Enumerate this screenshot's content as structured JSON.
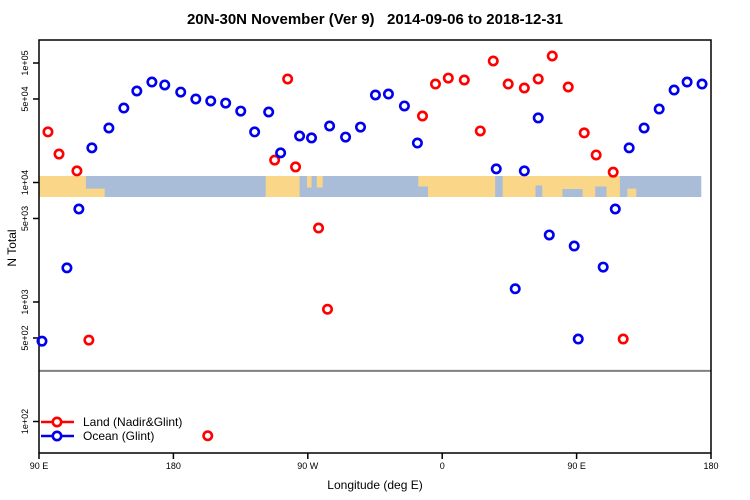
{
  "title": "20N-30N November (Ver 9)   2014-09-06 to 2018-12-31",
  "axes": {
    "x": {
      "label": "Longitude (deg E)",
      "tick_lons": [
        90,
        180,
        270,
        360,
        450,
        540
      ],
      "tick_labels": [
        "90 E",
        "180",
        "90 W",
        "0",
        "90 E",
        "180"
      ]
    },
    "y": {
      "label": "N Total",
      "tick_values": [
        100000,
        50000,
        10000,
        5000,
        1000,
        500,
        100
      ],
      "tick_labels": [
        "1e+05",
        "5e+04",
        "1e+04",
        "5e+03",
        "1e+03",
        "5e+02",
        "1e+02"
      ]
    }
  },
  "legend": [
    {
      "label": "Land (Nadir&Glint)",
      "color": "#ff0000"
    },
    {
      "label": "Ocean (Glint)",
      "color": "#0000ee"
    }
  ],
  "colors": {
    "land_series": "#ff0000",
    "ocean_series": "#0000ee",
    "map_land": "#fad689",
    "map_ocean": "#a9bdd8",
    "threshold_line": "#808080",
    "axis": "#000000"
  },
  "chart_data": {
    "type": "scatter",
    "title": "20N-30N November (Ver 9)   2014-09-06 to 2018-12-31",
    "xlabel": "Longitude (deg E)",
    "ylabel": "N Total",
    "x_axis": "extended longitude in deg E, 90 through 540 (wraps past dateline and prime meridian)",
    "xlim": [
      90,
      540
    ],
    "y_scale": "log",
    "ylim": [
      60,
      180000
    ],
    "grid": false,
    "legend_position": "bottom-left inside plot",
    "threshold_line_value": 265,
    "series": [
      {
        "name": "Land (Nadir&Glint)",
        "color": "#ff0000",
        "points": [
          [
            96.0,
            26500
          ],
          [
            103.4,
            17300
          ],
          [
            115.4,
            12500
          ],
          [
            123.4,
            480
          ],
          [
            203.0,
            76
          ],
          [
            247.8,
            15400
          ],
          [
            256.5,
            73500
          ],
          [
            261.8,
            13500
          ],
          [
            277.2,
            4160
          ],
          [
            283.2,
            870
          ],
          [
            346.8,
            36000
          ],
          [
            355.5,
            66700
          ],
          [
            364.1,
            74800
          ],
          [
            374.8,
            72100
          ],
          [
            385.5,
            27000
          ],
          [
            394.2,
            104000
          ],
          [
            404.2,
            66700
          ],
          [
            415.0,
            61800
          ],
          [
            424.3,
            73500
          ],
          [
            433.7,
            114500
          ],
          [
            444.4,
            63000
          ],
          [
            455.1,
            26000
          ],
          [
            463.1,
            17000
          ],
          [
            474.5,
            12200
          ],
          [
            481.2,
            490
          ]
        ]
      },
      {
        "name": "Ocean (Glint)",
        "color": "#0000ee",
        "points": [
          [
            92.0,
            470
          ],
          [
            108.7,
            1930
          ],
          [
            116.7,
            6000
          ],
          [
            125.4,
            19500
          ],
          [
            136.8,
            28600
          ],
          [
            146.8,
            42000
          ],
          [
            155.5,
            58300
          ],
          [
            165.6,
            69300
          ],
          [
            174.2,
            65500
          ],
          [
            184.9,
            57100
          ],
          [
            195.0,
            50000
          ],
          [
            205.0,
            48100
          ],
          [
            215.0,
            46200
          ],
          [
            225.1,
            39600
          ],
          [
            234.4,
            26500
          ],
          [
            243.8,
            38900
          ],
          [
            251.8,
            17700
          ],
          [
            264.5,
            24500
          ],
          [
            272.5,
            23600
          ],
          [
            284.6,
            29700
          ],
          [
            295.3,
            24000
          ],
          [
            305.3,
            29100
          ],
          [
            315.3,
            54000
          ],
          [
            324.0,
            55000
          ],
          [
            334.7,
            43700
          ],
          [
            343.4,
            21400
          ],
          [
            396.2,
            13000
          ],
          [
            408.9,
            1290
          ],
          [
            415.0,
            12500
          ],
          [
            424.3,
            34700
          ],
          [
            431.7,
            3640
          ],
          [
            448.4,
            2940
          ],
          [
            451.1,
            490
          ],
          [
            467.8,
            1960
          ],
          [
            475.9,
            6000
          ],
          [
            485.2,
            19500
          ],
          [
            495.2,
            28600
          ],
          [
            505.3,
            41200
          ],
          [
            515.3,
            59400
          ],
          [
            524.0,
            69300
          ],
          [
            534.0,
            66700
          ]
        ]
      }
    ],
    "map_band": {
      "description": "land/ocean strip drawn across plot near y=1e+04",
      "value_top": 11000,
      "value_bottom": 7600,
      "ocean_extent_lon": [
        90,
        533.5
      ],
      "land_segments": [
        [
          90,
          121.4,
          0,
          1
        ],
        [
          121.4,
          134,
          0.6,
          1
        ],
        [
          241.8,
          264.5,
          0,
          1
        ],
        [
          269.5,
          272.5,
          0,
          0.55
        ],
        [
          276,
          280,
          0,
          0.55
        ],
        [
          344,
          479,
          0,
          1
        ],
        [
          484,
          490,
          0.6,
          1
        ]
      ],
      "ocean_overlays": [
        [
          344,
          350.5,
          0.5,
          1
        ],
        [
          395.5,
          400.5,
          0,
          1
        ],
        [
          422.5,
          427,
          0.45,
          1
        ],
        [
          440.5,
          454,
          0.62,
          1
        ],
        [
          462.5,
          470,
          0.5,
          1
        ]
      ]
    }
  }
}
